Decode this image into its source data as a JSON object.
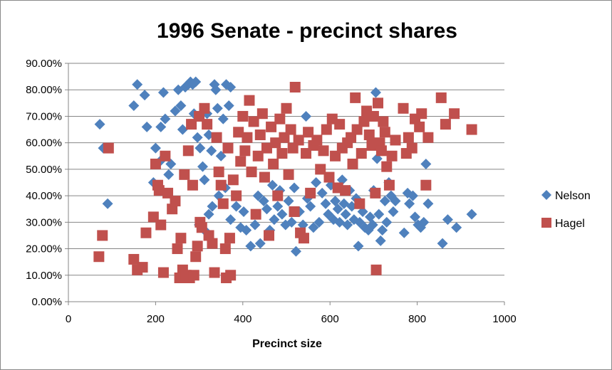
{
  "chart_data": {
    "type": "scatter",
    "title": "1996 Senate - precinct shares",
    "xlabel": "Precinct size",
    "ylabel": "",
    "xlim": [
      0,
      1000
    ],
    "ylim": [
      0,
      0.9
    ],
    "x_ticks": [
      0,
      200,
      400,
      600,
      800,
      1000
    ],
    "x_tick_labels": [
      "0",
      "200",
      "400",
      "600",
      "800",
      "1000"
    ],
    "y_ticks": [
      0,
      0.1,
      0.2,
      0.3,
      0.4,
      0.5,
      0.6,
      0.7,
      0.8,
      0.9
    ],
    "y_tick_labels": [
      "0.00%",
      "10.00%",
      "20.00%",
      "30.00%",
      "40.00%",
      "50.00%",
      "60.00%",
      "70.00%",
      "80.00%",
      "90.00%"
    ],
    "grid": "horizontal",
    "legend_position": "right",
    "colors": {
      "nelson": "#4f81bd",
      "hagel": "#c0504d",
      "grid": "#868686",
      "axis": "#868686"
    },
    "series": [
      {
        "name": "Nelson",
        "marker": "diamond",
        "points": [
          [
            72,
            0.67
          ],
          [
            80,
            0.58
          ],
          [
            90,
            0.37
          ],
          [
            150,
            0.74
          ],
          [
            158,
            0.82
          ],
          [
            175,
            0.78
          ],
          [
            180,
            0.66
          ],
          [
            195,
            0.45
          ],
          [
            200,
            0.58
          ],
          [
            210,
            0.53
          ],
          [
            212,
            0.66
          ],
          [
            218,
            0.79
          ],
          [
            222,
            0.69
          ],
          [
            230,
            0.48
          ],
          [
            235,
            0.52
          ],
          [
            245,
            0.72
          ],
          [
            252,
            0.8
          ],
          [
            258,
            0.74
          ],
          [
            262,
            0.65
          ],
          [
            268,
            0.81
          ],
          [
            275,
            0.82
          ],
          [
            280,
            0.83
          ],
          [
            285,
            0.82
          ],
          [
            288,
            0.71
          ],
          [
            292,
            0.83
          ],
          [
            296,
            0.62
          ],
          [
            302,
            0.58
          ],
          [
            308,
            0.51
          ],
          [
            312,
            0.46
          ],
          [
            318,
            0.71
          ],
          [
            322,
            0.63
          ],
          [
            328,
            0.57
          ],
          [
            335,
            0.82
          ],
          [
            338,
            0.8
          ],
          [
            342,
            0.73
          ],
          [
            350,
            0.55
          ],
          [
            355,
            0.69
          ],
          [
            362,
            0.82
          ],
          [
            368,
            0.74
          ],
          [
            372,
            0.81
          ],
          [
            300,
            0.29
          ],
          [
            312,
            0.27
          ],
          [
            322,
            0.33
          ],
          [
            330,
            0.36
          ],
          [
            345,
            0.4
          ],
          [
            360,
            0.43
          ],
          [
            372,
            0.31
          ],
          [
            385,
            0.36
          ],
          [
            395,
            0.28
          ],
          [
            402,
            0.34
          ],
          [
            408,
            0.27
          ],
          [
            418,
            0.21
          ],
          [
            428,
            0.29
          ],
          [
            435,
            0.4
          ],
          [
            440,
            0.22
          ],
          [
            448,
            0.38
          ],
          [
            455,
            0.35
          ],
          [
            462,
            0.27
          ],
          [
            468,
            0.44
          ],
          [
            472,
            0.31
          ],
          [
            480,
            0.36
          ],
          [
            485,
            0.42
          ],
          [
            490,
            0.33
          ],
          [
            498,
            0.29
          ],
          [
            505,
            0.38
          ],
          [
            512,
            0.3
          ],
          [
            518,
            0.43
          ],
          [
            522,
            0.19
          ],
          [
            530,
            0.34
          ],
          [
            538,
            0.29
          ],
          [
            545,
            0.7
          ],
          [
            548,
            0.39
          ],
          [
            555,
            0.36
          ],
          [
            562,
            0.28
          ],
          [
            568,
            0.45
          ],
          [
            575,
            0.3
          ],
          [
            582,
            0.41
          ],
          [
            590,
            0.37
          ],
          [
            596,
            0.33
          ],
          [
            602,
            0.44
          ],
          [
            608,
            0.31
          ],
          [
            612,
            0.38
          ],
          [
            618,
            0.35
          ],
          [
            622,
            0.3
          ],
          [
            628,
            0.46
          ],
          [
            632,
            0.37
          ],
          [
            636,
            0.33
          ],
          [
            640,
            0.29
          ],
          [
            645,
            0.42
          ],
          [
            650,
            0.36
          ],
          [
            655,
            0.31
          ],
          [
            660,
            0.39
          ],
          [
            665,
            0.21
          ],
          [
            668,
            0.3
          ],
          [
            675,
            0.34
          ],
          [
            680,
            0.28
          ],
          [
            688,
            0.27
          ],
          [
            692,
            0.32
          ],
          [
            698,
            0.29
          ],
          [
            700,
            0.42
          ],
          [
            705,
            0.79
          ],
          [
            708,
            0.54
          ],
          [
            712,
            0.33
          ],
          [
            716,
            0.23
          ],
          [
            720,
            0.27
          ],
          [
            726,
            0.38
          ],
          [
            730,
            0.3
          ],
          [
            735,
            0.45
          ],
          [
            740,
            0.4
          ],
          [
            745,
            0.34
          ],
          [
            750,
            0.38
          ],
          [
            770,
            0.26
          ],
          [
            778,
            0.41
          ],
          [
            782,
            0.37
          ],
          [
            790,
            0.4
          ],
          [
            795,
            0.32
          ],
          [
            802,
            0.29
          ],
          [
            808,
            0.28
          ],
          [
            815,
            0.3
          ],
          [
            820,
            0.52
          ],
          [
            825,
            0.37
          ],
          [
            858,
            0.22
          ],
          [
            870,
            0.31
          ],
          [
            890,
            0.28
          ],
          [
            925,
            0.33
          ]
        ]
      },
      {
        "name": "Hagel",
        "marker": "square",
        "points": [
          [
            70,
            0.17
          ],
          [
            78,
            0.25
          ],
          [
            92,
            0.58
          ],
          [
            150,
            0.16
          ],
          [
            158,
            0.12
          ],
          [
            170,
            0.13
          ],
          [
            178,
            0.26
          ],
          [
            195,
            0.32
          ],
          [
            200,
            0.52
          ],
          [
            205,
            0.44
          ],
          [
            208,
            0.42
          ],
          [
            212,
            0.29
          ],
          [
            218,
            0.11
          ],
          [
            222,
            0.55
          ],
          [
            228,
            0.41
          ],
          [
            238,
            0.35
          ],
          [
            245,
            0.38
          ],
          [
            250,
            0.2
          ],
          [
            255,
            0.09
          ],
          [
            258,
            0.24
          ],
          [
            262,
            0.12
          ],
          [
            266,
            0.48
          ],
          [
            270,
            0.1
          ],
          [
            275,
            0.57
          ],
          [
            278,
            0.09
          ],
          [
            282,
            0.67
          ],
          [
            285,
            0.44
          ],
          [
            288,
            0.1
          ],
          [
            292,
            0.17
          ],
          [
            296,
            0.21
          ],
          [
            300,
            0.7
          ],
          [
            302,
            0.3
          ],
          [
            306,
            0.28
          ],
          [
            312,
            0.73
          ],
          [
            318,
            0.67
          ],
          [
            322,
            0.25
          ],
          [
            330,
            0.22
          ],
          [
            335,
            0.11
          ],
          [
            340,
            0.62
          ],
          [
            345,
            0.49
          ],
          [
            350,
            0.44
          ],
          [
            355,
            0.37
          ],
          [
            360,
            0.2
          ],
          [
            362,
            0.09
          ],
          [
            366,
            0.58
          ],
          [
            370,
            0.24
          ],
          [
            372,
            0.1
          ],
          [
            378,
            0.46
          ],
          [
            385,
            0.4
          ],
          [
            390,
            0.64
          ],
          [
            395,
            0.53
          ],
          [
            400,
            0.7
          ],
          [
            405,
            0.57
          ],
          [
            410,
            0.62
          ],
          [
            415,
            0.76
          ],
          [
            420,
            0.49
          ],
          [
            425,
            0.68
          ],
          [
            430,
            0.33
          ],
          [
            435,
            0.55
          ],
          [
            440,
            0.63
          ],
          [
            445,
            0.71
          ],
          [
            450,
            0.47
          ],
          [
            455,
            0.58
          ],
          [
            460,
            0.25
          ],
          [
            465,
            0.66
          ],
          [
            470,
            0.52
          ],
          [
            475,
            0.6
          ],
          [
            480,
            0.4
          ],
          [
            485,
            0.69
          ],
          [
            490,
            0.56
          ],
          [
            495,
            0.62
          ],
          [
            500,
            0.73
          ],
          [
            505,
            0.48
          ],
          [
            510,
            0.65
          ],
          [
            515,
            0.58
          ],
          [
            518,
            0.34
          ],
          [
            520,
            0.81
          ],
          [
            528,
            0.61
          ],
          [
            532,
            0.26
          ],
          [
            540,
            0.24
          ],
          [
            545,
            0.56
          ],
          [
            550,
            0.64
          ],
          [
            555,
            0.41
          ],
          [
            562,
            0.59
          ],
          [
            570,
            0.61
          ],
          [
            578,
            0.5
          ],
          [
            585,
            0.57
          ],
          [
            592,
            0.65
          ],
          [
            598,
            0.47
          ],
          [
            605,
            0.69
          ],
          [
            612,
            0.55
          ],
          [
            618,
            0.43
          ],
          [
            622,
            0.67
          ],
          [
            628,
            0.58
          ],
          [
            635,
            0.42
          ],
          [
            640,
            0.6
          ],
          [
            648,
            0.62
          ],
          [
            652,
            0.52
          ],
          [
            658,
            0.77
          ],
          [
            662,
            0.65
          ],
          [
            668,
            0.37
          ],
          [
            672,
            0.56
          ],
          [
            678,
            0.68
          ],
          [
            684,
            0.72
          ],
          [
            690,
            0.63
          ],
          [
            696,
            0.59
          ],
          [
            700,
            0.7
          ],
          [
            704,
            0.41
          ],
          [
            706,
            0.12
          ],
          [
            710,
            0.75
          ],
          [
            714,
            0.6
          ],
          [
            718,
            0.57
          ],
          [
            722,
            0.68
          ],
          [
            726,
            0.64
          ],
          [
            730,
            0.51
          ],
          [
            736,
            0.44
          ],
          [
            742,
            0.55
          ],
          [
            750,
            0.61
          ],
          [
            768,
            0.73
          ],
          [
            775,
            0.56
          ],
          [
            780,
            0.62
          ],
          [
            788,
            0.58
          ],
          [
            795,
            0.69
          ],
          [
            805,
            0.66
          ],
          [
            810,
            0.71
          ],
          [
            820,
            0.44
          ],
          [
            825,
            0.62
          ],
          [
            855,
            0.77
          ],
          [
            865,
            0.67
          ],
          [
            885,
            0.71
          ],
          [
            925,
            0.65
          ]
        ]
      }
    ]
  }
}
